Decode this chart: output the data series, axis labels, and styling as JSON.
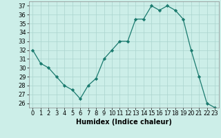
{
  "x": [
    0,
    1,
    2,
    3,
    4,
    5,
    6,
    7,
    8,
    9,
    10,
    11,
    12,
    13,
    14,
    15,
    16,
    17,
    18,
    19,
    20,
    21,
    22,
    23
  ],
  "y": [
    32,
    30.5,
    30,
    29,
    28,
    27.5,
    26.5,
    28,
    28.8,
    31,
    32,
    33,
    33,
    35.5,
    35.5,
    37,
    36.5,
    37,
    36.5,
    35.5,
    32,
    29,
    26,
    25.5
  ],
  "xlabel": "Humidex (Indice chaleur)",
  "ylim": [
    25.5,
    37.5
  ],
  "xlim": [
    -0.5,
    23.5
  ],
  "yticks": [
    26,
    27,
    28,
    29,
    30,
    31,
    32,
    33,
    34,
    35,
    36,
    37
  ],
  "xticks": [
    0,
    1,
    2,
    3,
    4,
    5,
    6,
    7,
    8,
    9,
    10,
    11,
    12,
    13,
    14,
    15,
    16,
    17,
    18,
    19,
    20,
    21,
    22,
    23
  ],
  "line_color": "#1a7a6e",
  "marker_color": "#1a7a6e",
  "bg_color": "#cceee8",
  "grid_color": "#aad4ce",
  "label_fontsize": 7,
  "tick_fontsize": 6
}
